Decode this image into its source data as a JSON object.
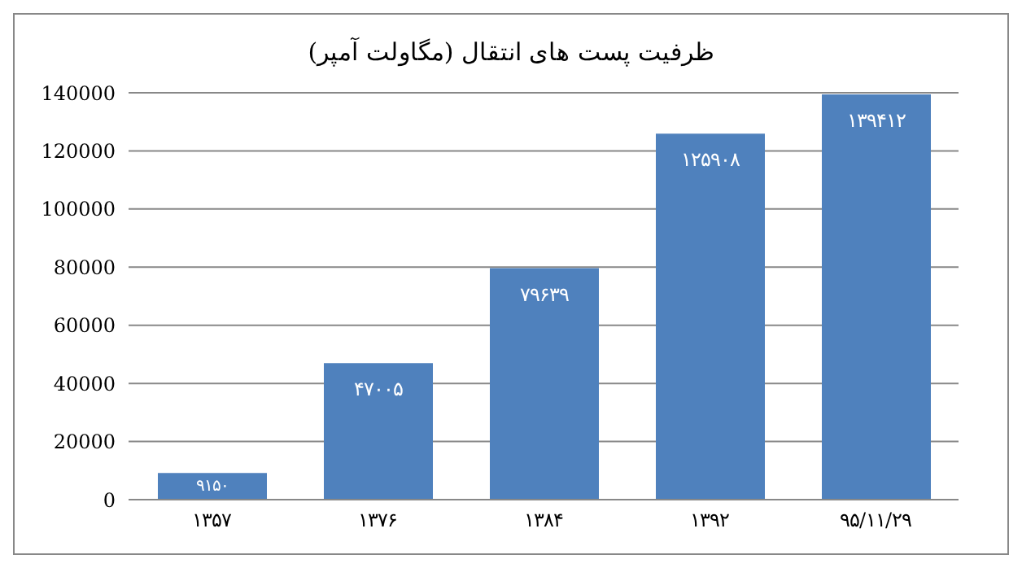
{
  "chart_data": {
    "type": "bar",
    "title": "ظرفیت پست های انتقال (مگاولت آمپر)",
    "categories": [
      "۱۳۵۷",
      "۱۳۷۶",
      "۱۳۸۴",
      "۱۳۹۲",
      "۹۵/۱۱/۲۹"
    ],
    "values": [
      9150,
      47005,
      79639,
      125908,
      139412
    ],
    "value_labels": [
      "۹۱۵۰",
      "۴۷۰۰۵",
      "۷۹۶۳۹",
      "۱۲۵۹۰۸",
      "۱۳۹۴۱۲"
    ],
    "color": "#4f81bd",
    "ylim": [
      0,
      140000
    ],
    "yticks": [
      0,
      20000,
      40000,
      60000,
      80000,
      100000,
      120000,
      140000
    ],
    "grid": "y"
  }
}
